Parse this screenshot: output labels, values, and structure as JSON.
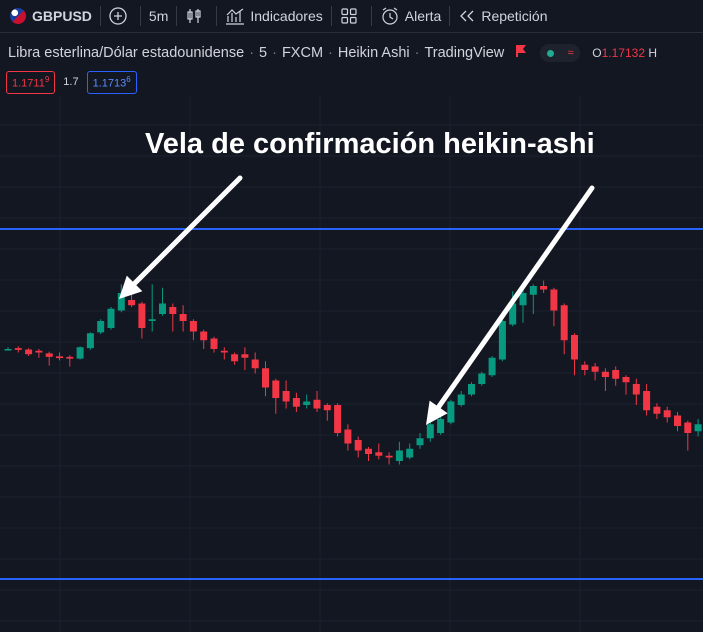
{
  "toolbar": {
    "symbol": "GBPUSD",
    "interval": "5m",
    "indicators_label": "Indicadores",
    "alert_label": "Alerta",
    "replay_label": "Repetición"
  },
  "legend": {
    "name": "Libra esterlina/Dólar estadounidense",
    "interval": "5",
    "exchange": "FXCM",
    "chart_type": "Heikin Ashi",
    "source": "TradingView",
    "ohlc_label": "O",
    "ohlc_value": "1.17132",
    "ohlc_next_label": "H"
  },
  "prices": {
    "sell": "1.1711",
    "sell_sup": "9",
    "spread": "1.7",
    "buy": "1.1713",
    "buy_sup": "6"
  },
  "colors": {
    "background": "#131722",
    "bull": "#089981",
    "bear": "#f23645",
    "level_line": "#2962ff",
    "annotation": "#ffffff"
  },
  "annotation": {
    "text": "Vela de confirmación heikin-ashi"
  },
  "chart_data": {
    "type": "candlestick",
    "style": "heikin-ashi",
    "grid": true,
    "horizontal_lines": [
      "upper-resistance",
      "lower-support"
    ],
    "arrows_point_to_candles": [
      10,
      40
    ],
    "candles": [
      {
        "o": 0.0,
        "c": 0.0,
        "h": 0.1,
        "l": -0.1
      },
      {
        "o": 0.05,
        "c": -0.05,
        "h": 0.15,
        "l": -0.2
      },
      {
        "o": -0.03,
        "c": -0.3,
        "h": 0.05,
        "l": -0.4
      },
      {
        "o": -0.1,
        "c": -0.2,
        "h": 0.0,
        "l": -0.5
      },
      {
        "o": -0.25,
        "c": -0.45,
        "h": -0.15,
        "l": -0.95
      },
      {
        "o": -0.42,
        "c": -0.52,
        "h": -0.2,
        "l": -0.65
      },
      {
        "o": -0.45,
        "c": -0.55,
        "h": -0.35,
        "l": -1.0
      },
      {
        "o": -0.55,
        "c": 0.1,
        "h": 0.15,
        "l": -0.6
      },
      {
        "o": 0.05,
        "c": 0.9,
        "h": 0.95,
        "l": -0.05
      },
      {
        "o": 0.95,
        "c": 1.6,
        "h": 1.7,
        "l": 0.85
      },
      {
        "o": 1.2,
        "c": 2.3,
        "h": 2.4,
        "l": 1.1
      },
      {
        "o": 2.2,
        "c": 3.2,
        "h": 3.7,
        "l": 2.1
      },
      {
        "o": 2.8,
        "c": 2.5,
        "h": 3.5,
        "l": 2.4
      },
      {
        "o": 2.6,
        "c": 1.2,
        "h": 2.7,
        "l": 0.6
      },
      {
        "o": 1.6,
        "c": 1.7,
        "h": 3.7,
        "l": 1.0
      },
      {
        "o": 2.0,
        "c": 2.6,
        "h": 3.5,
        "l": 1.9
      },
      {
        "o": 2.4,
        "c": 2.0,
        "h": 2.6,
        "l": 1.0
      },
      {
        "o": 2.0,
        "c": 1.6,
        "h": 2.5,
        "l": 1.0
      },
      {
        "o": 1.6,
        "c": 1.0,
        "h": 1.7,
        "l": 0.5
      },
      {
        "o": 1.0,
        "c": 0.5,
        "h": 1.1,
        "l": 0.0
      },
      {
        "o": 0.6,
        "c": 0.0,
        "h": 0.7,
        "l": -0.2
      },
      {
        "o": -0.1,
        "c": -0.2,
        "h": 0.1,
        "l": -0.6
      },
      {
        "o": -0.3,
        "c": -0.7,
        "h": -0.2,
        "l": -0.9
      },
      {
        "o": -0.3,
        "c": -0.5,
        "h": 0.1,
        "l": -1.2
      },
      {
        "o": -0.6,
        "c": -1.1,
        "h": -0.2,
        "l": -1.4
      },
      {
        "o": -1.1,
        "c": -2.2,
        "h": -0.7,
        "l": -2.7
      },
      {
        "o": -1.8,
        "c": -2.8,
        "h": -1.7,
        "l": -3.7
      },
      {
        "o": -2.4,
        "c": -3.0,
        "h": -1.8,
        "l": -3.4
      },
      {
        "o": -2.8,
        "c": -3.3,
        "h": -2.5,
        "l": -3.6
      },
      {
        "o": -3.2,
        "c": -3.0,
        "h": -2.6,
        "l": -3.4
      },
      {
        "o": -2.9,
        "c": -3.4,
        "h": -2.4,
        "l": -3.6
      },
      {
        "o": -3.2,
        "c": -3.5,
        "h": -3.1,
        "l": -4.1
      },
      {
        "o": -3.2,
        "c": -4.8,
        "h": -3.1,
        "l": -5.0
      },
      {
        "o": -4.6,
        "c": -5.4,
        "h": -4.3,
        "l": -5.8
      },
      {
        "o": -5.2,
        "c": -5.8,
        "h": -5.0,
        "l": -6.2
      },
      {
        "o": -5.7,
        "c": -6.0,
        "h": -5.6,
        "l": -6.4
      },
      {
        "o": -5.9,
        "c": -6.1,
        "h": -5.4,
        "l": -6.3
      },
      {
        "o": -6.1,
        "c": -6.2,
        "h": -5.9,
        "l": -6.6
      },
      {
        "o": -6.4,
        "c": -5.8,
        "h": -5.3,
        "l": -6.6
      },
      {
        "o": -6.2,
        "c": -5.7,
        "h": -5.4,
        "l": -6.3
      },
      {
        "o": -5.5,
        "c": -5.1,
        "h": -4.8,
        "l": -5.7
      },
      {
        "o": -5.1,
        "c": -4.3,
        "h": -4.0,
        "l": -5.3
      },
      {
        "o": -4.8,
        "c": -4.0,
        "h": -3.2,
        "l": -4.9
      },
      {
        "o": -4.2,
        "c": -3.0,
        "h": -2.9,
        "l": -4.3
      },
      {
        "o": -3.2,
        "c": -2.6,
        "h": -2.4,
        "l": -3.3
      },
      {
        "o": -2.6,
        "c": -2.0,
        "h": -1.9,
        "l": -2.7
      },
      {
        "o": -2.0,
        "c": -1.4,
        "h": -1.3,
        "l": -2.1
      },
      {
        "o": -1.5,
        "c": -0.5,
        "h": -0.4,
        "l": -1.6
      },
      {
        "o": -0.6,
        "c": 1.6,
        "h": 1.7,
        "l": -0.7
      },
      {
        "o": 1.4,
        "c": 2.6,
        "h": 3.3,
        "l": 1.3
      },
      {
        "o": 2.5,
        "c": 3.2,
        "h": 3.5,
        "l": 1.5
      },
      {
        "o": 3.1,
        "c": 3.6,
        "h": 3.7,
        "l": 2.0
      },
      {
        "o": 3.6,
        "c": 3.4,
        "h": 3.9,
        "l": 3.2
      },
      {
        "o": 3.4,
        "c": 2.2,
        "h": 3.5,
        "l": 1.3
      },
      {
        "o": 2.5,
        "c": 0.5,
        "h": 2.6,
        "l": -0.3
      },
      {
        "o": 0.8,
        "c": -0.6,
        "h": 0.9,
        "l": -1.5
      },
      {
        "o": -0.9,
        "c": -1.2,
        "h": -0.7,
        "l": -1.5
      },
      {
        "o": -1.0,
        "c": -1.3,
        "h": -0.8,
        "l": -1.8
      },
      {
        "o": -1.3,
        "c": -1.6,
        "h": -1.1,
        "l": -2.4
      },
      {
        "o": -1.2,
        "c": -1.7,
        "h": -1.0,
        "l": -2.1
      },
      {
        "o": -1.6,
        "c": -1.9,
        "h": -1.5,
        "l": -2.6
      },
      {
        "o": -2.0,
        "c": -2.6,
        "h": -1.7,
        "l": -3.2
      },
      {
        "o": -2.4,
        "c": -3.5,
        "h": -2.0,
        "l": -3.8
      },
      {
        "o": -3.3,
        "c": -3.7,
        "h": -3.1,
        "l": -4.0
      },
      {
        "o": -3.5,
        "c": -3.9,
        "h": -3.3,
        "l": -4.2
      },
      {
        "o": -3.8,
        "c": -4.4,
        "h": -3.6,
        "l": -4.7
      },
      {
        "o": -4.2,
        "c": -4.8,
        "h": -4.1,
        "l": -5.8
      },
      {
        "o": -4.7,
        "c": -4.3,
        "h": -4.0,
        "l": -5.0
      },
      {
        "o": -4.4,
        "c": -4.6,
        "h": -3.8,
        "l": -5.0
      },
      {
        "o": -4.5,
        "c": -5.0,
        "h": -4.4,
        "l": -5.5
      }
    ]
  }
}
